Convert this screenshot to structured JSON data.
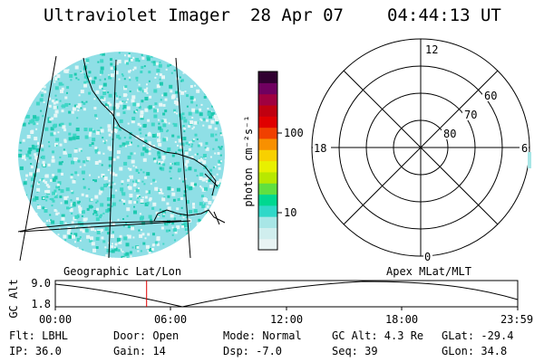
{
  "header": {
    "title": "Ultraviolet Imager",
    "date": "28 Apr 07",
    "time": "04:44:13 UT"
  },
  "colorbar": {
    "unit_label": "photon cm⁻²s⁻¹",
    "ticks": [
      "100",
      "10"
    ],
    "colors": [
      "#e8f4f4",
      "#d0eeee",
      "#a8e6e6",
      "#30d8c8",
      "#00d890",
      "#60e040",
      "#b8e800",
      "#e8f000",
      "#f8d000",
      "#f89000",
      "#f04000",
      "#e00000",
      "#c00010",
      "#a00040",
      "#700060",
      "#300030"
    ]
  },
  "left_panel": {
    "label": "Geographic Lat/Lon",
    "colors": {
      "base": "#8fdfe6",
      "light": "#e6f6f6",
      "mid": "#3fd6c6",
      "dark": "#1ec9b0"
    }
  },
  "polar_panel": {
    "label": "Apex MLat/MLT",
    "mlt_labels": {
      "top": "12",
      "left": "18",
      "right": "6",
      "bottom": "0"
    },
    "lat_labels": [
      "60",
      "70",
      "80"
    ]
  },
  "altitude_plot": {
    "axis_label": "GC Alt",
    "y_ticks": [
      "9.0",
      "1.8"
    ],
    "x_ticks": [
      "00:00",
      "06:00",
      "12:00",
      "18:00",
      "23:59"
    ],
    "marker_color": "#e00000",
    "marker_hour": 4.74
  },
  "status": {
    "filter": "Flt: LBHL",
    "ip": "IP: 36.0",
    "door": "Door: Open",
    "gain": "Gain: 14",
    "mode": "Mode: Normal",
    "dsp": "Dsp:   -7.0",
    "gc_alt": "GC Alt: 4.3 Re",
    "seq": "Seq: 39",
    "glat": "GLat: -29.4",
    "glon": "GLon:  34.8"
  }
}
